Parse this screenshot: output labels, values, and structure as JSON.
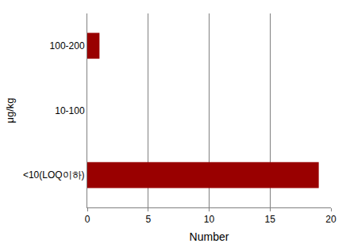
{
  "chart_data": {
    "type": "bar",
    "orientation": "horizontal",
    "categories": [
      "<10(LOQ이하)",
      "10-100",
      "100-200"
    ],
    "values": [
      19,
      0,
      1
    ],
    "color": "#990000",
    "x_label": "Number",
    "y_label": "μg/kg",
    "xlim": [
      0,
      20
    ],
    "xticks": [
      0,
      5,
      10,
      15,
      20
    ],
    "grid": true
  }
}
